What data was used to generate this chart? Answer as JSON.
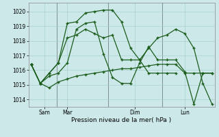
{
  "title": "",
  "xlabel": "Pression niveau de la mer( hPa )",
  "bg_color": "#cce8e8",
  "line_color": "#1a5c1a",
  "ylim": [
    1013.5,
    1020.6
  ],
  "yticks": [
    1014,
    1015,
    1016,
    1017,
    1018,
    1019,
    1020
  ],
  "xlim": [
    -0.3,
    20.3
  ],
  "xtick_positions": [
    1.5,
    4.0,
    11.5,
    17.0
  ],
  "xtick_labels": [
    "Sam",
    "Mar",
    "Dim",
    "Lun"
  ],
  "day_vlines": [
    2.8,
    8.5,
    14.5
  ],
  "series1_x": [
    0,
    1,
    2,
    3,
    4,
    5,
    6,
    7,
    8,
    9,
    10,
    11,
    12,
    13,
    14,
    15,
    16,
    17,
    18,
    19,
    20
  ],
  "series1_y": [
    1016.4,
    1015.1,
    1014.8,
    1015.2,
    1015.4,
    1015.6,
    1015.7,
    1015.8,
    1015.9,
    1016.0,
    1016.1,
    1016.1,
    1016.2,
    1016.3,
    1016.4,
    1016.4,
    1016.4,
    1015.8,
    1015.8,
    1015.8,
    1015.8
  ],
  "series2_x": [
    0,
    1,
    2,
    3,
    4,
    5,
    6,
    7,
    8,
    9,
    10,
    11,
    12,
    13,
    14,
    15,
    16,
    17,
    18,
    19,
    20
  ],
  "series2_y": [
    1016.4,
    1015.1,
    1015.6,
    1015.8,
    1016.5,
    1018.8,
    1019.2,
    1019.3,
    1017.1,
    1015.5,
    1015.1,
    1015.1,
    1016.5,
    1017.6,
    1016.7,
    1016.7,
    1016.7,
    1015.9,
    1013.7,
    1015.8,
    1015.8
  ],
  "series3_x": [
    0,
    1,
    2,
    3,
    4,
    5,
    6,
    7,
    8,
    9,
    10,
    11,
    12,
    13,
    14,
    15,
    16,
    17,
    18,
    19,
    20
  ],
  "series3_y": [
    1016.4,
    1015.1,
    1015.8,
    1016.5,
    1019.2,
    1019.3,
    1019.9,
    1020.0,
    1020.1,
    1020.1,
    1019.3,
    1017.5,
    1016.7,
    1017.5,
    1018.2,
    1018.4,
    1018.8,
    1018.5,
    1017.5,
    1015.1,
    1013.7
  ],
  "series4_x": [
    0,
    1,
    2,
    3,
    4,
    5,
    6,
    7,
    8,
    9,
    10,
    11,
    12,
    13,
    14,
    15,
    16
  ],
  "series4_y": [
    1016.4,
    1015.1,
    1015.8,
    1016.5,
    1018.2,
    1018.4,
    1018.8,
    1018.5,
    1018.2,
    1018.4,
    1016.7,
    1016.7,
    1016.7,
    1015.8,
    1015.8,
    1015.8,
    1015.8
  ]
}
